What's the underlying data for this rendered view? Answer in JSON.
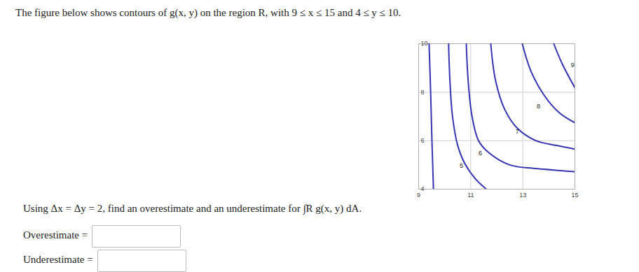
{
  "header": {
    "text": "The figure below shows contours of g(x, y) on the region R, with 9 ≤ x ≤ 15 and 4 ≤ y ≤ 10."
  },
  "chart_data": {
    "type": "contour",
    "xlim": [
      9,
      15
    ],
    "ylim": [
      4,
      10
    ],
    "xticks": [
      9,
      11,
      13,
      15
    ],
    "yticks": [
      4,
      6,
      8,
      10
    ],
    "grid": true,
    "color": "#3434b4",
    "series": [
      {
        "level": null,
        "x": [
          9.4,
          9.46,
          9.51,
          9.57
        ],
        "y": [
          10,
          8.04,
          6.02,
          4
        ]
      },
      {
        "level": 5,
        "x": [
          10.15,
          10.2,
          10.3,
          10.5,
          10.8,
          11.2,
          11.6
        ],
        "y": [
          10,
          8.5,
          7,
          5.8,
          5.0,
          4.4,
          4.0
        ],
        "label_at": [
          10.64,
          4.96
        ]
      },
      {
        "level": 6,
        "x": [
          10.83,
          10.9,
          11.05,
          11.3,
          11.7,
          12.5,
          13.5,
          15
        ],
        "y": [
          10,
          8.5,
          7,
          6,
          5.5,
          5.0,
          4.85,
          4.72
        ],
        "label_at": [
          11.37,
          5.48
        ]
      },
      {
        "level": 7,
        "x": [
          11.77,
          11.95,
          12.3,
          12.8,
          13.5,
          14.3,
          15
        ],
        "y": [
          10,
          8.5,
          7.3,
          6.5,
          6.0,
          5.8,
          5.65
        ],
        "label_at": [
          12.79,
          6.37
        ]
      },
      {
        "level": 8,
        "x": [
          12.98,
          13.3,
          13.8,
          14.4,
          15
        ],
        "y": [
          10,
          8.9,
          7.9,
          7.15,
          6.74
        ],
        "label_at": [
          13.6,
          7.41
        ]
      },
      {
        "level": 9,
        "x": [
          14.19,
          14.5,
          15
        ],
        "y": [
          10,
          9.2,
          8.18
        ],
        "label_at": [
          14.91,
          9.11
        ]
      }
    ]
  },
  "question": {
    "text": "Using Δx = Δy = 2, find an overestimate and an underestimate for ∫R g(x, y) dA."
  },
  "answers": [
    {
      "label": "Overestimate ="
    },
    {
      "label": "Underestimate ="
    }
  ]
}
